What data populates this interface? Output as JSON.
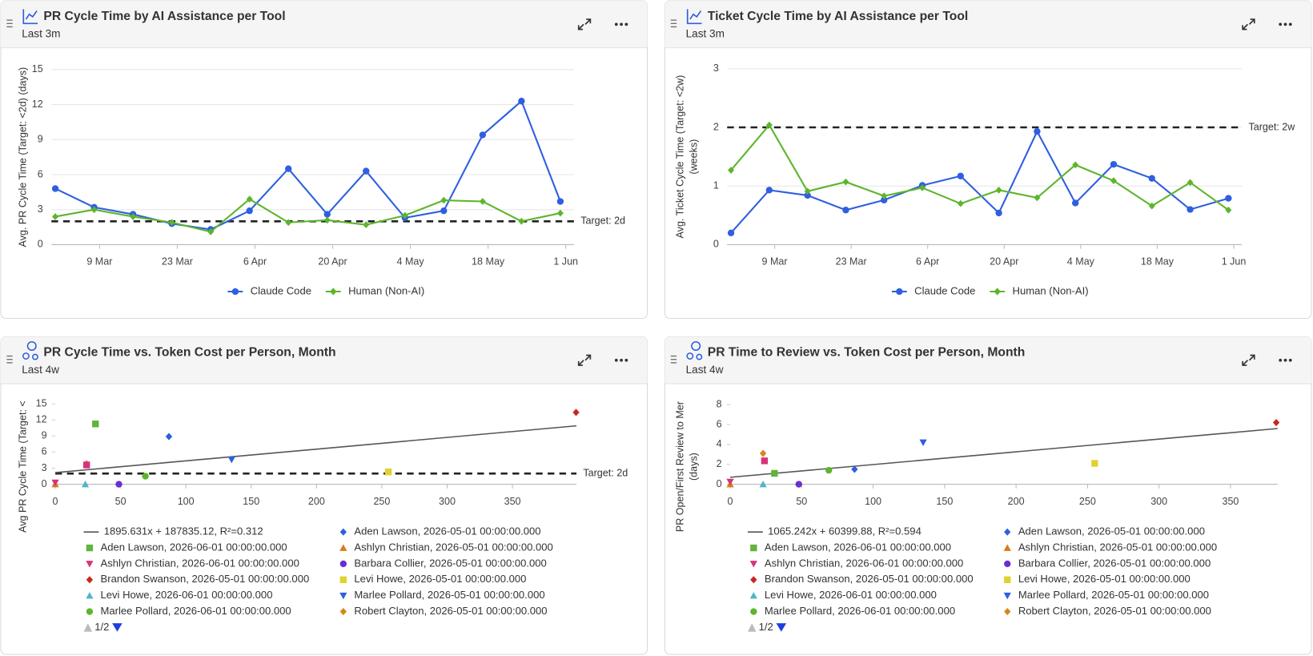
{
  "chart_data": [
    {
      "type": "line",
      "title": "PR Cycle Time by AI Assistance per Tool",
      "subtitle": "Last 3m",
      "ylabel": [
        "Avg. PR Cycle Time (Target: <2d) (days)"
      ],
      "x": [
        0,
        1,
        2,
        3,
        4,
        5,
        6,
        7,
        8,
        9,
        10,
        11,
        12,
        13
      ],
      "xlim": [
        -0.1,
        13.35
      ],
      "xticks": [
        {
          "value": 1.14,
          "label": "9 Mar"
        },
        {
          "value": 3.14,
          "label": "23 Mar"
        },
        {
          "value": 5.14,
          "label": "6 Apr"
        },
        {
          "value": 7.14,
          "label": "20 Apr"
        },
        {
          "value": 9.14,
          "label": "4 May"
        },
        {
          "value": 11.14,
          "label": "18 May"
        },
        {
          "value": 13.14,
          "label": "1 Jun"
        }
      ],
      "ylim": [
        0,
        15
      ],
      "yticks": [
        0,
        3,
        6,
        9,
        12,
        15
      ],
      "grid": true,
      "target": {
        "value": 2,
        "label": "Target: 2d"
      },
      "series": [
        {
          "name": "Claude Code",
          "color": "#2f5fe0",
          "marker": "circle",
          "values": [
            4.8,
            3.2,
            2.6,
            1.8,
            1.3,
            2.9,
            6.5,
            2.6,
            6.3,
            2.3,
            2.9,
            9.4,
            12.3,
            3.7
          ]
        },
        {
          "name": "Human (Non-AI)",
          "color": "#5db52b",
          "marker": "diamond",
          "values": [
            2.4,
            3.0,
            2.4,
            1.9,
            1.1,
            3.9,
            1.9,
            2.1,
            1.7,
            2.5,
            3.8,
            3.7,
            2.0,
            2.7
          ]
        }
      ]
    },
    {
      "type": "line",
      "title": "Ticket Cycle Time by AI Assistance per Tool",
      "subtitle": "Last 3m",
      "ylabel": [
        "Avg. Ticket Cycle Time (Target: <2w)",
        "(weeks)"
      ],
      "x": [
        0,
        1,
        2,
        3,
        4,
        5,
        6,
        7,
        8,
        9,
        10,
        11,
        12,
        13
      ],
      "xlim": [
        -0.1,
        13.35
      ],
      "xticks": [
        {
          "value": 1.14,
          "label": "9 Mar"
        },
        {
          "value": 3.14,
          "label": "23 Mar"
        },
        {
          "value": 5.14,
          "label": "6 Apr"
        },
        {
          "value": 7.14,
          "label": "20 Apr"
        },
        {
          "value": 9.14,
          "label": "4 May"
        },
        {
          "value": 11.14,
          "label": "18 May"
        },
        {
          "value": 13.14,
          "label": "1 Jun"
        }
      ],
      "ylim": [
        0,
        3
      ],
      "yticks": [
        0,
        1,
        2,
        3
      ],
      "grid": true,
      "target": {
        "value": 2,
        "label": "Target: 2w"
      },
      "series": [
        {
          "name": "Claude Code",
          "color": "#2f5fe0",
          "marker": "circle",
          "values": [
            0.2,
            0.93,
            0.84,
            0.59,
            0.76,
            1.01,
            1.17,
            0.54,
            1.93,
            0.71,
            1.37,
            1.13,
            0.6,
            0.79
          ]
        },
        {
          "name": "Human (Non-AI)",
          "color": "#5db52b",
          "marker": "diamond",
          "values": [
            1.27,
            2.04,
            0.91,
            1.07,
            0.83,
            0.97,
            0.7,
            0.93,
            0.8,
            1.36,
            1.09,
            0.66,
            1.06,
            0.59
          ]
        }
      ]
    },
    {
      "type": "scatter",
      "title": "PR Cycle Time vs. Token Cost per Person, Month",
      "subtitle": "Last 4w",
      "ylabel": [
        "Avg PR Cycle Time (Target: <"
      ],
      "xlim": [
        0,
        399
      ],
      "xticks": [
        0,
        50,
        100,
        150,
        200,
        250,
        300,
        350
      ],
      "ylim": [
        0,
        15
      ],
      "yticks": [
        0,
        3,
        6,
        9,
        12,
        15
      ],
      "grid": false,
      "target": {
        "value": 2,
        "label": "Target: 2d"
      },
      "trend": {
        "label": "1895.631x + 187835.12, R²=0.312",
        "color": "#555555",
        "x": [
          0,
          399
        ],
        "values": [
          2.17,
          10.9
        ]
      },
      "legend_page": "1/2",
      "series": [
        {
          "name": "Aden Lawson, 2026-05-01 00:00:00.000",
          "color": "#2f5fe0",
          "marker": "diamond",
          "x": [
            87
          ],
          "values": [
            8.9
          ]
        },
        {
          "name": "Aden Lawson, 2026-06-01 00:00:00.000",
          "color": "#62b43a",
          "marker": "square",
          "x": [
            30.8
          ],
          "values": [
            11.25
          ]
        },
        {
          "name": "Ashlyn Christian, 2026-05-01 00:00:00.000",
          "color": "#d97a1c",
          "marker": "triangle",
          "x": [
            0
          ],
          "values": [
            0
          ]
        },
        {
          "name": "Ashlyn Christian, 2026-06-01 00:00:00.000",
          "color": "#d6337a",
          "marker": "triangle-down",
          "x": [
            0
          ],
          "values": [
            0.3
          ]
        },
        {
          "name": "Barbara Collier, 2026-05-01 00:00:00.000",
          "color": "#6a2ed1",
          "marker": "circle",
          "x": [
            48.7
          ],
          "values": [
            0
          ]
        },
        {
          "name": "Brandon Swanson, 2026-05-01 00:00:00.000",
          "color": "#c8281e",
          "marker": "diamond",
          "x": [
            398.7
          ],
          "values": [
            13.4
          ]
        },
        {
          "name": "Levi Howe, 2026-05-01 00:00:00.000",
          "color": "#e2d12e",
          "marker": "square",
          "x": [
            255
          ],
          "values": [
            2.3
          ]
        },
        {
          "name": "Levi Howe, 2026-06-01 00:00:00.000",
          "color": "#4fb6c6",
          "marker": "triangle",
          "x": [
            23
          ],
          "values": [
            0
          ]
        },
        {
          "name": "Marlee Pollard, 2026-05-01 00:00:00.000",
          "color": "#2f5fe0",
          "marker": "triangle-down",
          "x": [
            135
          ],
          "values": [
            4.6
          ]
        },
        {
          "name": "Marlee Pollard, 2026-06-01 00:00:00.000",
          "color": "#5db52b",
          "marker": "circle",
          "x": [
            69
          ],
          "values": [
            1.5
          ]
        },
        {
          "name": "Robert Clayton, 2026-05-01 00:00:00.000",
          "color": "#d4871c",
          "marker": "diamond",
          "x": [
            24
          ],
          "values": [
            3.8
          ]
        },
        {
          "name": null,
          "color": "#d6337a",
          "marker": "square",
          "x": [
            24
          ],
          "values": [
            3.6
          ]
        }
      ]
    },
    {
      "type": "scatter",
      "title": "PR Time to Review vs. Token Cost per Person, Month",
      "subtitle": "Last 4w",
      "ylabel": [
        "PR Open/First Review to Mer",
        "(days)"
      ],
      "xlim": [
        0,
        383
      ],
      "xticks": [
        0,
        50,
        100,
        150,
        200,
        250,
        300,
        350
      ],
      "ylim": [
        0,
        8
      ],
      "yticks": [
        0,
        2,
        4,
        6,
        8
      ],
      "grid": false,
      "trend": {
        "label": "1065.242x + 60399.88, R²=0.594",
        "color": "#555555",
        "x": [
          0,
          383
        ],
        "values": [
          0.7,
          5.6
        ]
      },
      "legend_page": "1/2",
      "series": [
        {
          "name": "Aden Lawson, 2026-05-01 00:00:00.000",
          "color": "#2f5fe0",
          "marker": "diamond",
          "x": [
            87
          ],
          "values": [
            1.5
          ]
        },
        {
          "name": "Aden Lawson, 2026-06-01 00:00:00.000",
          "color": "#62b43a",
          "marker": "square",
          "x": [
            31
          ],
          "values": [
            1.1
          ]
        },
        {
          "name": "Ashlyn Christian, 2026-05-01 00:00:00.000",
          "color": "#d97a1c",
          "marker": "triangle",
          "x": [
            0
          ],
          "values": [
            0
          ]
        },
        {
          "name": "Ashlyn Christian, 2026-06-01 00:00:00.000",
          "color": "#d6337a",
          "marker": "triangle-down",
          "x": [
            0
          ],
          "values": [
            0.25
          ]
        },
        {
          "name": "Barbara Collier, 2026-05-01 00:00:00.000",
          "color": "#6a2ed1",
          "marker": "circle",
          "x": [
            48
          ],
          "values": [
            0
          ]
        },
        {
          "name": "Brandon Swanson, 2026-05-01 00:00:00.000",
          "color": "#c8281e",
          "marker": "diamond",
          "x": [
            382
          ],
          "values": [
            6.2
          ]
        },
        {
          "name": "Levi Howe, 2026-05-01 00:00:00.000",
          "color": "#e2d12e",
          "marker": "square",
          "x": [
            255
          ],
          "values": [
            2.1
          ]
        },
        {
          "name": "Levi Howe, 2026-06-01 00:00:00.000",
          "color": "#4fb6c6",
          "marker": "triangle",
          "x": [
            23
          ],
          "values": [
            0
          ]
        },
        {
          "name": "Marlee Pollard, 2026-05-01 00:00:00.000",
          "color": "#2f5fe0",
          "marker": "triangle-down",
          "x": [
            135
          ],
          "values": [
            4.2
          ]
        },
        {
          "name": "Marlee Pollard, 2026-06-01 00:00:00.000",
          "color": "#5db52b",
          "marker": "circle",
          "x": [
            69
          ],
          "values": [
            1.4
          ]
        },
        {
          "name": "Robert Clayton, 2026-05-01 00:00:00.000",
          "color": "#d4871c",
          "marker": "diamond",
          "x": [
            23
          ],
          "values": [
            3.1
          ]
        },
        {
          "name": null,
          "color": "#d6337a",
          "marker": "square",
          "x": [
            24
          ],
          "values": [
            2.35
          ]
        }
      ]
    }
  ]
}
